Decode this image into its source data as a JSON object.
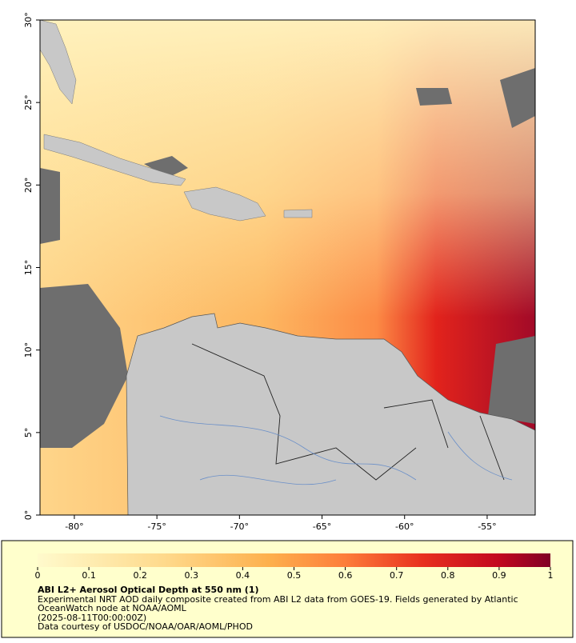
{
  "map": {
    "xlim": [
      -82.08,
      -52.09
    ],
    "ylim": [
      0,
      30
    ],
    "xticks": [
      {
        "value": -80,
        "label": "-80°"
      },
      {
        "value": -75,
        "label": "-75°"
      },
      {
        "value": -70,
        "label": "-70°"
      },
      {
        "value": -65,
        "label": "-65°"
      },
      {
        "value": -60,
        "label": "-60°"
      },
      {
        "value": -55,
        "label": "-55°"
      }
    ],
    "yticks": [
      {
        "value": 0,
        "label": "0°"
      },
      {
        "value": 5,
        "label": "5°"
      },
      {
        "value": 10,
        "label": "10°"
      },
      {
        "value": 15,
        "label": "15°"
      },
      {
        "value": 20,
        "label": "20°"
      },
      {
        "value": 25,
        "label": "25°"
      },
      {
        "value": 30,
        "label": "30°"
      }
    ]
  },
  "colorbar": {
    "lim": [
      0,
      1
    ],
    "ticks": [
      0,
      0.1,
      0.2,
      0.3,
      0.4,
      0.5,
      0.6,
      0.7,
      0.8,
      0.9,
      1
    ]
  },
  "legend": {
    "title": "ABI L2+ Aerosol Optical Depth at 550 nm (1)",
    "description": [
      "Experimental NRT AOD daily composite created from ABI L2 data from GOES-19. Fields generated by Atlantic",
      "OceanWatch node at NOAA/AOML"
    ],
    "time": "(2025-08-11T00:00:00Z)",
    "credit": "Data courtesy of USDOC/NOAA/OAR/AOML/PHOD"
  }
}
